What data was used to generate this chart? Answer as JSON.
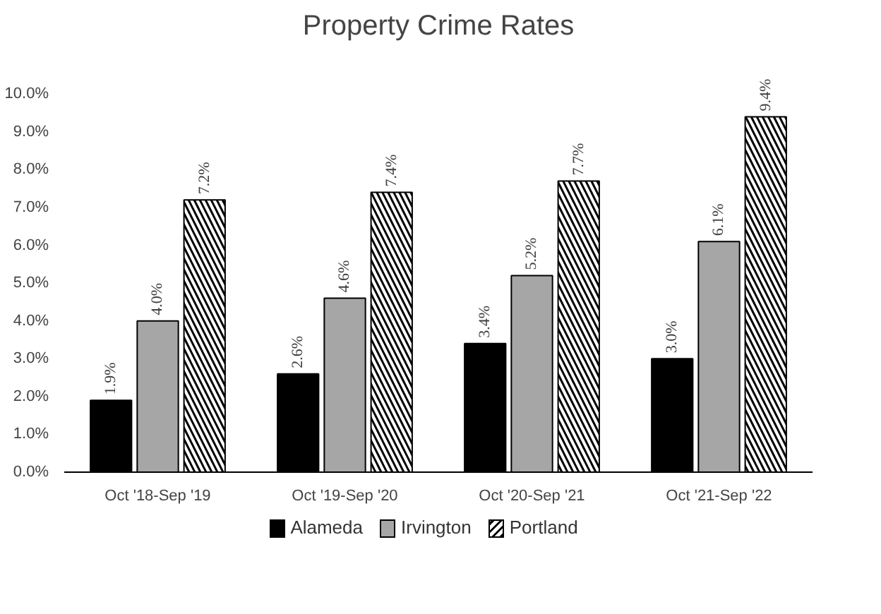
{
  "chart_data": {
    "type": "bar",
    "title": "Property Crime Rates",
    "categories": [
      "Oct '18-Sep '19",
      "Oct '19-Sep '20",
      "Oct '20-Sep '21",
      "Oct '21-Sep '22"
    ],
    "series": [
      {
        "name": "Alameda",
        "color": "#000000",
        "values": [
          1.9,
          2.6,
          3.4,
          3.0
        ],
        "value_labels": [
          "1.9%",
          "2.6%",
          "3.4%",
          "3.0%"
        ]
      },
      {
        "name": "Irvington",
        "color": "#a6a6a6",
        "values": [
          4.0,
          4.6,
          5.2,
          6.1
        ],
        "value_labels": [
          "4.0%",
          "4.6%",
          "5.2%",
          "6.1%"
        ]
      },
      {
        "name": "Portland",
        "color": "#ffffff",
        "values": [
          7.2,
          7.4,
          7.7,
          9.4
        ],
        "value_labels": [
          "7.2%",
          "7.4%",
          "7.7%",
          "9.4%"
        ]
      }
    ],
    "ylim": [
      0,
      10
    ],
    "yticks": [
      {
        "value": 0,
        "label": "0.0%"
      },
      {
        "value": 1,
        "label": "1.0%"
      },
      {
        "value": 2,
        "label": "2.0%"
      },
      {
        "value": 3,
        "label": "3.0%"
      },
      {
        "value": 4,
        "label": "4.0%"
      },
      {
        "value": 5,
        "label": "5.0%"
      },
      {
        "value": 6,
        "label": "6.0%"
      },
      {
        "value": 7,
        "label": "7.0%"
      },
      {
        "value": 8,
        "label": "8.0%"
      },
      {
        "value": 9,
        "label": "9.0%"
      },
      {
        "value": 10,
        "label": "10.0%"
      }
    ],
    "grid": false,
    "legend": "bottom"
  }
}
